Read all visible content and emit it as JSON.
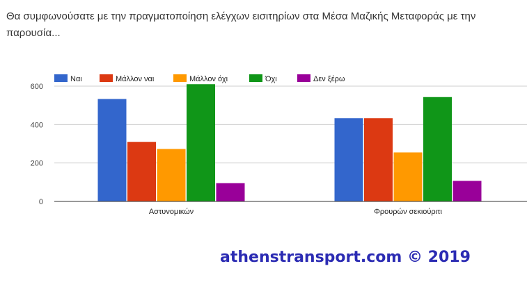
{
  "title": "Θα συμφωνούσατε με την πραγματοποίηση ελέγχων εισιτηρίων στα Μέσα Μαζικής Μεταφοράς με την παρουσία...",
  "watermark": "athenstransport.com © 2019",
  "chart_data": {
    "type": "bar",
    "categories": [
      "Αστυνομικών",
      "Φρουρών σεκιούριτι"
    ],
    "series": [
      {
        "name": "Ναι",
        "color": "#3366cc",
        "values": [
          533,
          433
        ]
      },
      {
        "name": "Μάλλον ναι",
        "color": "#dc3912",
        "values": [
          310,
          433
        ]
      },
      {
        "name": "Μάλλον όχι",
        "color": "#ff9900",
        "values": [
          273,
          255
        ]
      },
      {
        "name": "Όχι",
        "color": "#109618",
        "values": [
          610,
          543
        ]
      },
      {
        "name": "Δεν ξέρω",
        "color": "#990099",
        "values": [
          95,
          107
        ]
      }
    ],
    "yticks": [
      "0",
      "200",
      "400",
      "600"
    ],
    "ylim": [
      0,
      600
    ],
    "grid": true,
    "legend": "top-left",
    "xlabel": "",
    "ylabel": ""
  }
}
